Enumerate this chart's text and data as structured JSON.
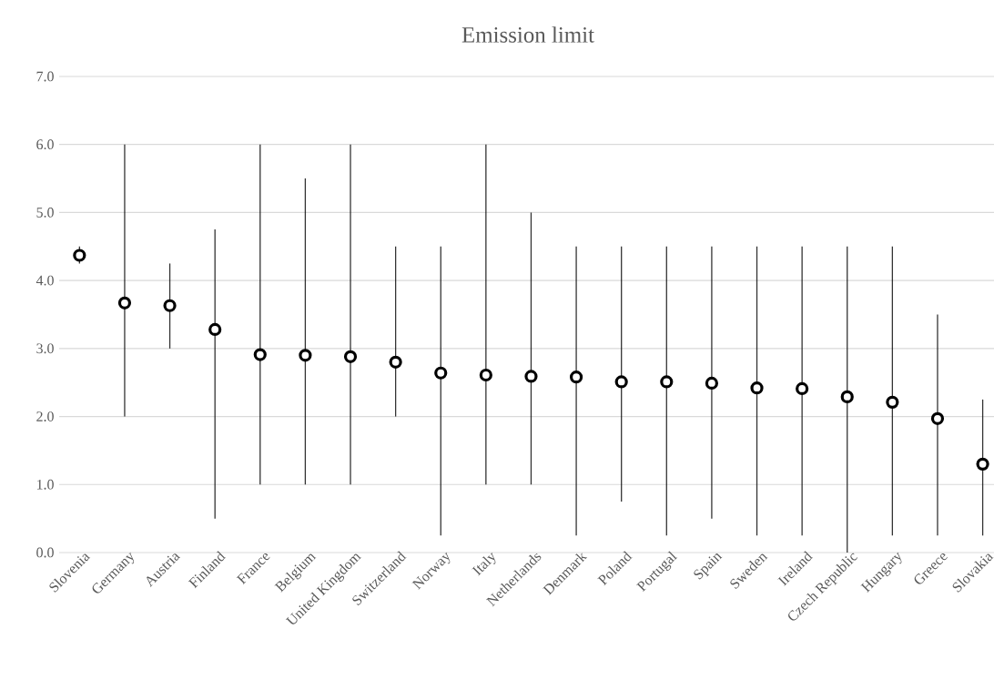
{
  "chart_data": {
    "type": "scatter",
    "title": "Emission limit",
    "categories": [
      "Slovenia",
      "Germany",
      "Austria",
      "Finland",
      "France",
      "Belgium",
      "United Kingdom",
      "Switzerland",
      "Norway",
      "Italy",
      "Netherlands",
      "Denmark",
      "Poland",
      "Portugal",
      "Spain",
      "Sweden",
      "Ireland",
      "Czech Republic",
      "Hungary",
      "Greece",
      "Slovakia"
    ],
    "series": [
      {
        "color": "#000000",
        "values": [
          4.37,
          3.67,
          3.63,
          3.28,
          2.91,
          2.9,
          2.88,
          2.8,
          2.64,
          2.61,
          2.59,
          2.58,
          2.51,
          2.51,
          2.49,
          2.42,
          2.41,
          2.29,
          2.21,
          1.97,
          1.3
        ],
        "errors": [
          [
            4.25,
            4.5
          ],
          [
            2.0,
            6.0
          ],
          [
            3.0,
            4.25
          ],
          [
            0.5,
            4.75
          ],
          [
            1.0,
            6.0
          ],
          [
            1.0,
            5.5
          ],
          [
            1.0,
            6.0
          ],
          [
            2.0,
            4.5
          ],
          [
            0.25,
            4.5
          ],
          [
            1.0,
            6.0
          ],
          [
            1.0,
            5.0
          ],
          [
            0.25,
            4.5
          ],
          [
            0.75,
            4.5
          ],
          [
            0.25,
            4.5
          ],
          [
            0.5,
            4.5
          ],
          [
            0.25,
            4.5
          ],
          [
            0.25,
            4.5
          ],
          [
            0.0,
            4.5
          ],
          [
            0.25,
            4.5
          ],
          [
            0.25,
            3.5
          ],
          [
            0.25,
            2.25
          ]
        ]
      }
    ],
    "ylim": [
      0,
      7
    ],
    "yticks": [
      {
        "value": 0,
        "label": "0.0"
      },
      {
        "value": 1,
        "label": "1.0"
      },
      {
        "value": 2,
        "label": "2.0"
      },
      {
        "value": 3,
        "label": "3.0"
      },
      {
        "value": 4,
        "label": "4.0"
      },
      {
        "value": 5,
        "label": "5.0"
      },
      {
        "value": 6,
        "label": "6.0"
      },
      {
        "value": 7,
        "label": "7.0"
      }
    ],
    "grid": "y",
    "marker": "circle"
  }
}
